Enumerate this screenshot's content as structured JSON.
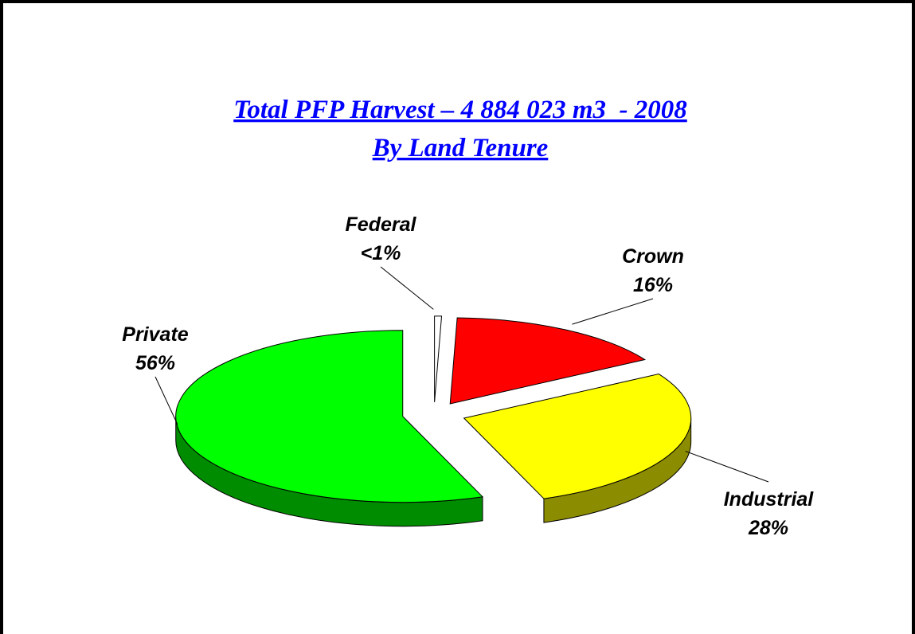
{
  "chart_data": {
    "type": "pie",
    "title": "Total PFP Harvest – 4 884 023 m3  - 2008",
    "subtitle": "By Land Tenure",
    "categories": [
      "Federal",
      "Crown",
      "Industrial",
      "Private"
    ],
    "values": [
      0.5,
      16,
      28,
      56
    ],
    "value_labels": [
      "<1%",
      "16%",
      "28%",
      "56%"
    ],
    "colors": [
      "#ffffff",
      "#ff0000",
      "#ffff00",
      "#00ff00"
    ]
  }
}
